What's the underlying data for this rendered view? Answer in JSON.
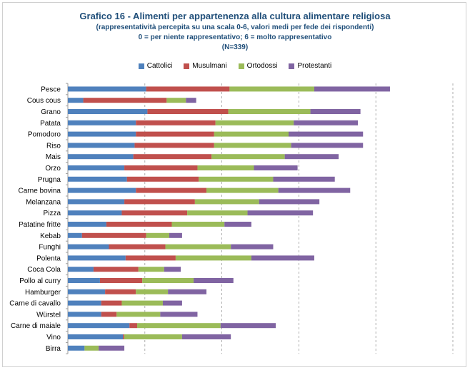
{
  "titles": {
    "main": "Grafico 16 - Alimenti per appartenenza alla cultura alimentare religiosa",
    "sub1": "(rappresentatività percepita su una scala 0-6, valori medi per fede dei rispondenti)",
    "sub2": "0 = per niente rappresentativo; 6 = molto rappresentativo",
    "sub3": "(N=339)"
  },
  "chart_data": {
    "type": "bar",
    "orientation": "horizontal",
    "stacked": true,
    "categories": [
      "Pesce",
      "Cous cous",
      "Grano",
      "Patata",
      "Pomodoro",
      "Riso",
      "Mais",
      "Orzo",
      "Prugna",
      "Carne bovina",
      "Melanzana",
      "Pizza",
      "Patatine fritte",
      "Kebab",
      "Funghi",
      "Polenta",
      "Coca Cola",
      "Pollo al curry",
      "Hamburger",
      "Carne di cavallo",
      "Würstel",
      "Carne di maiale",
      "Vino",
      "Birra"
    ],
    "series": [
      {
        "name": "Cattolici",
        "color": "#4f81bd",
        "values": [
          6.1,
          1.2,
          6.2,
          5.3,
          5.3,
          5.2,
          5.1,
          4.4,
          4.6,
          5.3,
          4.4,
          4.2,
          3.0,
          1.1,
          3.2,
          4.5,
          2.0,
          2.5,
          2.9,
          2.6,
          2.6,
          4.8,
          4.3,
          1.3
        ]
      },
      {
        "name": "Musulmani",
        "color": "#c0504d",
        "values": [
          6.5,
          6.5,
          6.3,
          6.2,
          6.1,
          6.2,
          6.1,
          5.7,
          5.6,
          5.5,
          5.5,
          5.1,
          5.1,
          5.0,
          4.4,
          3.9,
          3.5,
          3.3,
          2.4,
          1.6,
          1.2,
          0.6,
          0.1,
          0.0
        ]
      },
      {
        "name": "Ortodossi",
        "color": "#9bbb59",
        "values": [
          6.6,
          1.5,
          6.4,
          6.1,
          5.8,
          6.0,
          5.7,
          4.4,
          5.8,
          5.6,
          5.0,
          4.7,
          4.1,
          1.8,
          5.1,
          5.9,
          2.0,
          4.0,
          2.5,
          3.2,
          3.4,
          6.5,
          4.5,
          1.1
        ]
      },
      {
        "name": "Protestanti",
        "color": "#8064a2",
        "values": [
          5.9,
          0.8,
          3.9,
          5.0,
          5.8,
          5.6,
          4.2,
          3.4,
          4.8,
          5.6,
          4.7,
          5.1,
          2.1,
          1.0,
          3.3,
          4.9,
          1.3,
          3.1,
          3.0,
          1.5,
          2.9,
          4.3,
          3.8,
          2.0
        ]
      }
    ],
    "xlim": [
      0,
      30
    ],
    "x_gridlines": [
      6,
      12,
      18,
      24,
      30
    ],
    "grid": "vertical",
    "legend_position": "top"
  }
}
